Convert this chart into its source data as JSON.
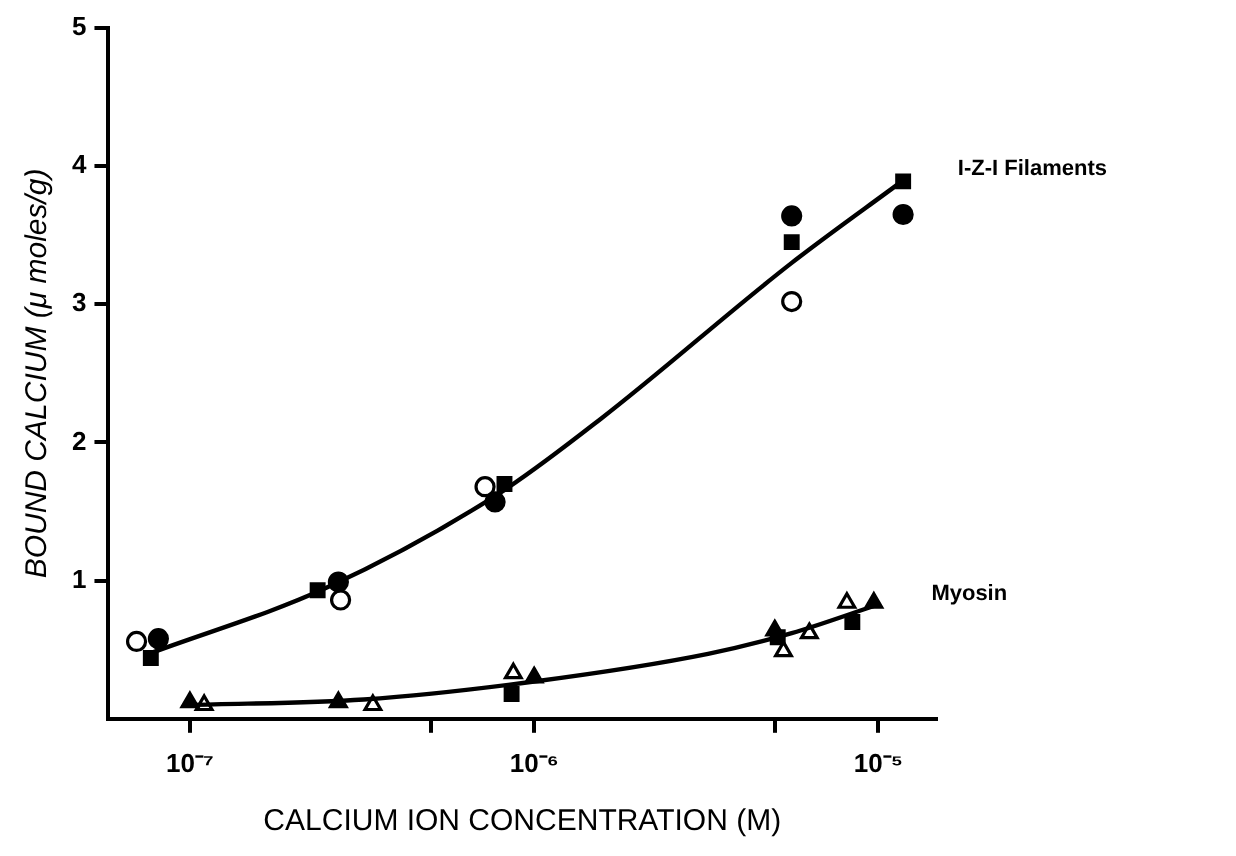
{
  "chart_data": {
    "type": "scatter",
    "xlabel": "CALCIUM ION CONCENTRATION (M)",
    "ylabel": "BOUND CALCIUM (μ moles/g)",
    "log": "x",
    "grid": false,
    "legend": false,
    "xlim": [
      5.8e-08,
      1.47e-05
    ],
    "xticks": [
      {
        "value": 1e-07,
        "label": "10⁻⁷"
      },
      {
        "value": 5e-07,
        "label": null
      },
      {
        "value": 1e-06,
        "label": "10⁻⁶"
      },
      {
        "value": 5e-06,
        "label": null
      },
      {
        "value": 1e-05,
        "label": "10⁻⁵"
      }
    ],
    "ylim": [
      0,
      5
    ],
    "yticks": [
      1,
      2,
      3,
      4,
      5
    ],
    "series": [
      {
        "type": "line",
        "name": "I-Z-I Filaments",
        "color": "#000000",
        "marker": "none",
        "x": [
          7.6e-08,
          2.5e-07,
          7.9e-07,
          1.56e-06,
          5.6e-06,
          1.17e-05
        ],
        "values": [
          0.47,
          0.95,
          1.63,
          2.17,
          3.3,
          3.89
        ]
      },
      {
        "type": "line",
        "name": "Myosin",
        "color": "#000000",
        "marker": "none",
        "x": [
          1e-07,
          3.2e-07,
          1e-06,
          3.2e-06,
          5.6e-06,
          9.8e-06
        ],
        "values": [
          0.1,
          0.14,
          0.27,
          0.47,
          0.62,
          0.82
        ]
      },
      {
        "color": "#000000",
        "marker": "circle",
        "x": [
          8.1e-08,
          2.7e-07,
          7.7e-07,
          5.6e-06,
          1.18e-05
        ],
        "values": [
          0.58,
          0.99,
          1.57,
          3.64,
          3.65
        ]
      },
      {
        "color": "#ffffff",
        "marker": "circle",
        "x": [
          7e-08,
          2.74e-07,
          7.2e-07,
          5.6e-06
        ],
        "values": [
          0.56,
          0.86,
          1.68,
          3.02
        ]
      },
      {
        "color": "#000000",
        "marker": "square",
        "x": [
          7.7e-08,
          2.35e-07,
          8.2e-07,
          5.6e-06,
          1.18e-05,
          8.6e-07,
          5.1e-06,
          8.4e-06
        ],
        "values": [
          0.44,
          0.93,
          1.7,
          3.45,
          3.89,
          0.18,
          0.59,
          0.7
        ]
      },
      {
        "color": "#000000",
        "marker": "triangle",
        "x": [
          1e-07,
          2.7e-07,
          1e-06,
          5e-06,
          9.7e-06
        ],
        "values": [
          0.12,
          0.12,
          0.3,
          0.64,
          0.84
        ]
      },
      {
        "color": "#ffffff",
        "marker": "triangle",
        "x": [
          1.1e-07,
          3.4e-07,
          8.7e-07,
          5.3e-06,
          6.3e-06,
          8.1e-06
        ],
        "values": [
          0.1,
          0.1,
          0.33,
          0.49,
          0.62,
          0.84
        ]
      }
    ]
  }
}
